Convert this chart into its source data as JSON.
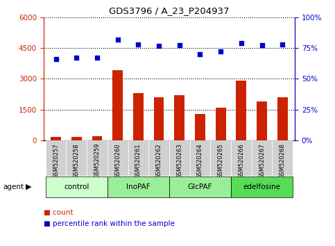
{
  "title": "GDS3796 / A_23_P204937",
  "samples": [
    "GSM520257",
    "GSM520258",
    "GSM520259",
    "GSM520260",
    "GSM520261",
    "GSM520262",
    "GSM520263",
    "GSM520264",
    "GSM520265",
    "GSM520266",
    "GSM520267",
    "GSM520268"
  ],
  "counts": [
    150,
    155,
    190,
    3400,
    2300,
    2100,
    2200,
    1280,
    1580,
    2900,
    1880,
    2100
  ],
  "percentiles": [
    66,
    67,
    67,
    82,
    78,
    76.5,
    77,
    70,
    72,
    79,
    77.5,
    78
  ],
  "bar_color": "#cc2200",
  "dot_color": "#0000cc",
  "ylim_left": [
    0,
    6000
  ],
  "ylim_right": [
    0,
    100
  ],
  "yticks_left": [
    0,
    1500,
    3000,
    4500,
    6000
  ],
  "yticks_right": [
    0,
    25,
    50,
    75,
    100
  ],
  "groups": [
    {
      "label": "control",
      "start": 0,
      "end": 2,
      "color": "#ccffcc"
    },
    {
      "label": "InoPAF",
      "start": 3,
      "end": 5,
      "color": "#99ee99"
    },
    {
      "label": "GlcPAF",
      "start": 6,
      "end": 8,
      "color": "#99ee99"
    },
    {
      "label": "edelfosine",
      "start": 9,
      "end": 11,
      "color": "#55dd55"
    }
  ],
  "legend_count_label": "count",
  "legend_pct_label": "percentile rank within the sample",
  "agent_label": "agent",
  "tick_color_left": "#cc2200",
  "tick_color_right": "#0000cc",
  "grid_dotted_color": "#000000",
  "figsize": [
    4.83,
    3.54
  ],
  "dpi": 100
}
